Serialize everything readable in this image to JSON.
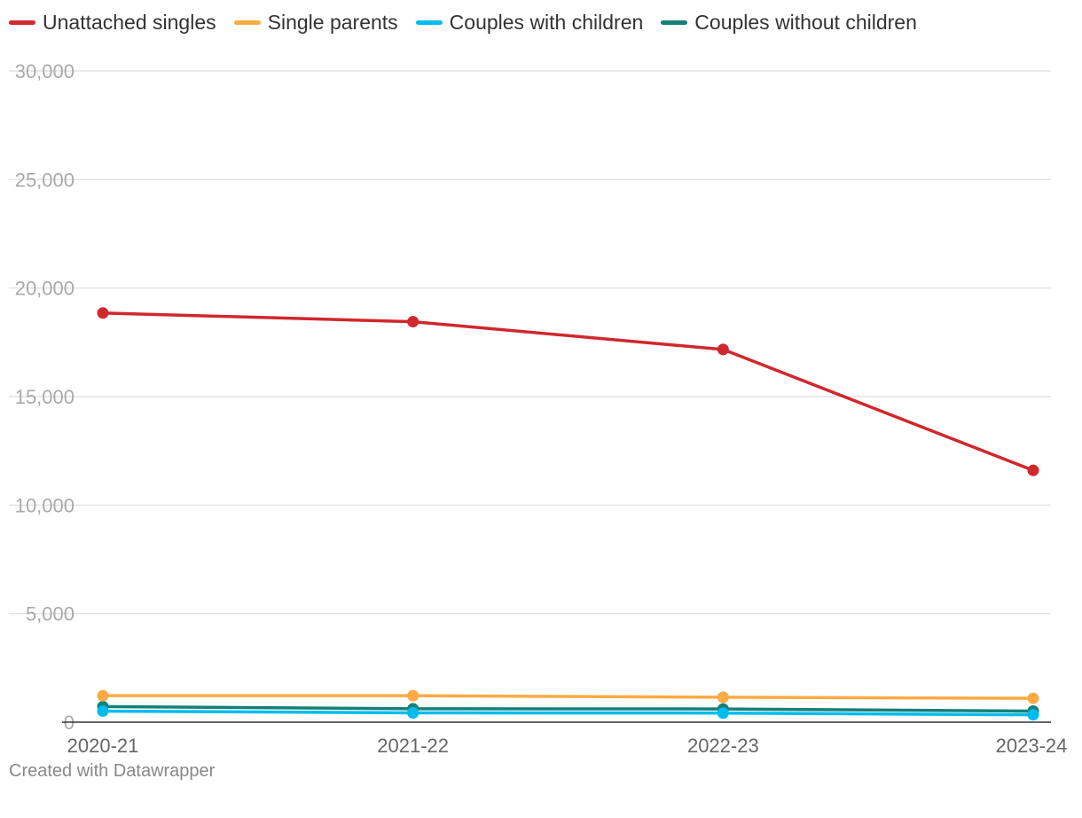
{
  "chart_data": {
    "type": "line",
    "categories": [
      "2020-21",
      "2021-22",
      "2022-23",
      "2023-24"
    ],
    "series": [
      {
        "name": "Unattached singles",
        "color": "#d0282c",
        "values": [
          18850,
          18450,
          17170,
          11600
        ]
      },
      {
        "name": "Single parents",
        "color": "#fbaa44",
        "values": [
          1220,
          1220,
          1150,
          1100
        ]
      },
      {
        "name": "Couples with children",
        "color": "#00bcec",
        "values": [
          510,
          430,
          420,
          340
        ]
      },
      {
        "name": "Couples without children",
        "color": "#148079",
        "values": [
          720,
          620,
          610,
          510
        ]
      }
    ],
    "ylim": [
      0,
      30000
    ],
    "yticks": [
      0,
      5000,
      10000,
      15000,
      20000,
      25000,
      30000
    ],
    "ytick_labels": [
      "0",
      "5,000",
      "10,000",
      "15,000",
      "20,000",
      "25,000",
      "30,000"
    ],
    "grid": true,
    "legend_position": "top-left",
    "title": "",
    "xlabel": "",
    "ylabel": ""
  },
  "footer": {
    "credit": "Created with Datawrapper"
  }
}
